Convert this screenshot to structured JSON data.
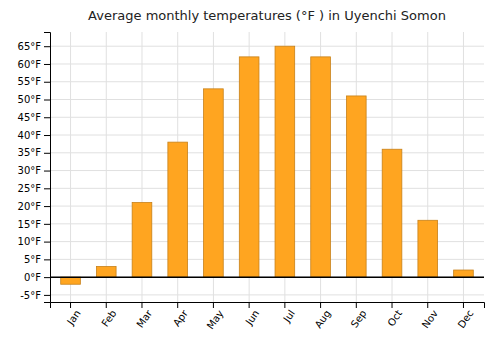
{
  "chart_data": {
    "type": "bar",
    "title": "Average monthly temperatures (°F ) in Uyenchi Somon",
    "categories": [
      "Jan",
      "Feb",
      "Mar",
      "Apr",
      "May",
      "Jun",
      "Jul",
      "Aug",
      "Sep",
      "Oct",
      "Nov",
      "Dec"
    ],
    "values": [
      -2,
      3,
      21,
      38,
      53,
      62,
      65,
      62,
      51,
      36,
      16,
      2
    ],
    "color": "#FFA520",
    "ylim": [
      -7,
      69
    ],
    "yticks": [
      {
        "value": -5,
        "label": "-5°F"
      },
      {
        "value": 0,
        "label": "0°F"
      },
      {
        "value": 5,
        "label": "5°F"
      },
      {
        "value": 10,
        "label": "10°F"
      },
      {
        "value": 15,
        "label": "15°F"
      },
      {
        "value": 20,
        "label": "20°F"
      },
      {
        "value": 25,
        "label": "25°F"
      },
      {
        "value": 30,
        "label": "30°F"
      },
      {
        "value": 35,
        "label": "35°F"
      },
      {
        "value": 40,
        "label": "40°F"
      },
      {
        "value": 45,
        "label": "45°F"
      },
      {
        "value": 50,
        "label": "50°F"
      },
      {
        "value": 55,
        "label": "55°F"
      },
      {
        "value": 60,
        "label": "60°F"
      },
      {
        "value": 65,
        "label": "65°F"
      }
    ],
    "grid": true
  }
}
